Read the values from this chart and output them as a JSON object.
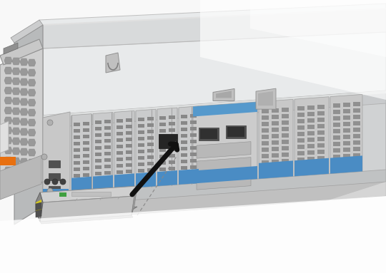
{
  "bg_color": "#f0f0f0",
  "white": "#ffffff",
  "chassis_top": "#e8e8e8",
  "chassis_front_light": "#d8d8d8",
  "chassis_front_mid": "#c8c8c8",
  "chassis_side_dark": "#b0b0b0",
  "rail_color": "#d0d0d0",
  "rail_edge": "#b8b8b8",
  "blue_label": "#4a8cc4",
  "blue_label2": "#5599cc",
  "dark_slot": "#404040",
  "mid_slot": "#606060",
  "vent_dark": "#888888",
  "vent_mid": "#999999",
  "psu_body": "#c0c0c0",
  "psu_dark": "#a0a0a0",
  "psu_orange": "#e87010",
  "arrow_color": "#111111",
  "dot_line": "#888888",
  "qsfp_top": "#c8c8c8",
  "qsfp_body": "#b8b8b8",
  "qsfp_side": "#a0a0a0",
  "qsfp_end_dark": "#707070",
  "qsfp_yellow": "#d4c820",
  "qsfp_green": "#40a040",
  "handle_color": "#909090",
  "figsize": [
    5.4,
    3.83
  ],
  "dpi": 100
}
